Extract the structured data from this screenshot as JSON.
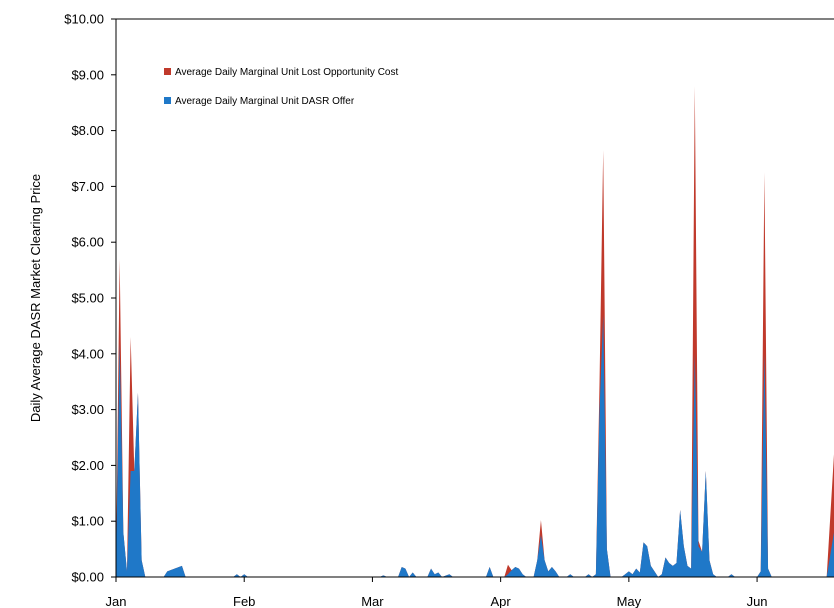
{
  "chart_data": {
    "type": "area",
    "title": "",
    "xlabel": "",
    "ylabel": "Daily Average DASR Market Clearing Price",
    "ylim": [
      0,
      10
    ],
    "xlim": [
      0,
      196
    ],
    "grid": false,
    "legend_position": "top-left",
    "y_ticks": [
      0,
      1,
      2,
      3,
      4,
      5,
      6,
      7,
      8,
      9,
      10
    ],
    "y_tick_labels": [
      "$0.00",
      "$1.00",
      "$2.00",
      "$3.00",
      "$4.00",
      "$5.00",
      "$6.00",
      "$7.00",
      "$8.00",
      "$9.00",
      "$10.00"
    ],
    "x_ticks": [
      0,
      35,
      70,
      105,
      140,
      175
    ],
    "x_tick_labels": [
      "Jan",
      "Feb",
      "Mar",
      "Apr",
      "May",
      "Jun"
    ],
    "series": [
      {
        "name": "Average Daily Marginal Unit Lost Opportunity Cost",
        "color": "#c0392b",
        "role": "total",
        "points": [
          [
            0,
            0.2
          ],
          [
            1,
            5.7
          ],
          [
            2,
            0.8
          ],
          [
            3,
            0.1
          ],
          [
            4,
            4.3
          ],
          [
            5,
            1.9
          ],
          [
            6,
            3.3
          ],
          [
            7,
            0.3
          ],
          [
            8,
            0
          ],
          [
            13,
            0
          ],
          [
            14,
            0.1
          ],
          [
            16,
            0.15
          ],
          [
            18,
            0.2
          ],
          [
            19,
            0
          ],
          [
            32,
            0
          ],
          [
            33,
            0.05
          ],
          [
            34,
            0
          ],
          [
            35,
            0.05
          ],
          [
            36,
            0
          ],
          [
            72,
            0
          ],
          [
            73,
            0.03
          ],
          [
            74,
            0
          ],
          [
            77,
            0
          ],
          [
            78,
            0.18
          ],
          [
            79,
            0.15
          ],
          [
            80,
            0
          ],
          [
            81,
            0.08
          ],
          [
            82,
            0
          ],
          [
            85,
            0
          ],
          [
            86,
            0.15
          ],
          [
            87,
            0.05
          ],
          [
            88,
            0.08
          ],
          [
            89,
            0
          ],
          [
            91,
            0.05
          ],
          [
            92,
            0
          ],
          [
            101,
            0
          ],
          [
            102,
            0.18
          ],
          [
            103,
            0
          ],
          [
            106,
            0
          ],
          [
            107,
            0.22
          ],
          [
            108,
            0.12
          ],
          [
            109,
            0.18
          ],
          [
            110,
            0.15
          ],
          [
            111,
            0.05
          ],
          [
            112,
            0
          ],
          [
            114,
            0
          ],
          [
            115,
            0.3
          ],
          [
            116,
            1.02
          ],
          [
            117,
            0.3
          ],
          [
            118,
            0.1
          ],
          [
            119,
            0.18
          ],
          [
            120,
            0.1
          ],
          [
            121,
            0
          ],
          [
            123,
            0
          ],
          [
            124,
            0.05
          ],
          [
            125,
            0
          ],
          [
            128,
            0
          ],
          [
            129,
            0.05
          ],
          [
            130,
            0
          ],
          [
            131,
            0.05
          ],
          [
            132,
            3.5
          ],
          [
            133,
            7.65
          ],
          [
            134,
            0.5
          ],
          [
            135,
            0
          ],
          [
            138,
            0
          ],
          [
            139,
            0.05
          ],
          [
            140,
            0.1
          ],
          [
            141,
            0.05
          ],
          [
            142,
            0.15
          ],
          [
            143,
            0.08
          ],
          [
            144,
            0.62
          ],
          [
            145,
            0.55
          ],
          [
            146,
            0.2
          ],
          [
            147,
            0.1
          ],
          [
            148,
            0
          ],
          [
            149,
            0.05
          ],
          [
            150,
            0.35
          ],
          [
            151,
            0.25
          ],
          [
            152,
            0.2
          ],
          [
            153,
            0.25
          ],
          [
            154,
            1.2
          ],
          [
            155,
            0.55
          ],
          [
            156,
            0.2
          ],
          [
            157,
            0.15
          ],
          [
            158,
            8.8
          ],
          [
            159,
            0.65
          ],
          [
            160,
            0.45
          ],
          [
            161,
            1.9
          ],
          [
            162,
            0.3
          ],
          [
            163,
            0.05
          ],
          [
            164,
            0
          ],
          [
            167,
            0
          ],
          [
            168,
            0.05
          ],
          [
            169,
            0
          ],
          [
            175,
            0
          ],
          [
            176,
            0.1
          ],
          [
            177,
            7.25
          ],
          [
            178,
            0.15
          ],
          [
            179,
            0
          ],
          [
            194,
            0
          ],
          [
            196,
            2.2
          ]
        ]
      },
      {
        "name": "Average Daily Marginal Unit DASR Offer",
        "color": "#1f78c8",
        "role": "base",
        "points": [
          [
            0,
            0.2
          ],
          [
            1,
            4.2
          ],
          [
            2,
            0.8
          ],
          [
            3,
            0.1
          ],
          [
            4,
            1.9
          ],
          [
            5,
            1.9
          ],
          [
            6,
            3.3
          ],
          [
            7,
            0.3
          ],
          [
            8,
            0
          ],
          [
            13,
            0
          ],
          [
            14,
            0.1
          ],
          [
            16,
            0.15
          ],
          [
            18,
            0.2
          ],
          [
            19,
            0
          ],
          [
            32,
            0
          ],
          [
            33,
            0.05
          ],
          [
            34,
            0
          ],
          [
            35,
            0.05
          ],
          [
            36,
            0
          ],
          [
            72,
            0
          ],
          [
            73,
            0.03
          ],
          [
            74,
            0
          ],
          [
            77,
            0
          ],
          [
            78,
            0.18
          ],
          [
            79,
            0.15
          ],
          [
            80,
            0
          ],
          [
            81,
            0.08
          ],
          [
            82,
            0
          ],
          [
            85,
            0
          ],
          [
            86,
            0.15
          ],
          [
            87,
            0.05
          ],
          [
            88,
            0.08
          ],
          [
            89,
            0
          ],
          [
            91,
            0.05
          ],
          [
            92,
            0
          ],
          [
            101,
            0
          ],
          [
            102,
            0.18
          ],
          [
            103,
            0
          ],
          [
            106,
            0
          ],
          [
            107,
            0.05
          ],
          [
            108,
            0.12
          ],
          [
            109,
            0.18
          ],
          [
            110,
            0.15
          ],
          [
            111,
            0.05
          ],
          [
            112,
            0
          ],
          [
            114,
            0
          ],
          [
            115,
            0.3
          ],
          [
            116,
            0.75
          ],
          [
            117,
            0.3
          ],
          [
            118,
            0.1
          ],
          [
            119,
            0.18
          ],
          [
            120,
            0.1
          ],
          [
            121,
            0
          ],
          [
            123,
            0
          ],
          [
            124,
            0.05
          ],
          [
            125,
            0
          ],
          [
            128,
            0
          ],
          [
            129,
            0.05
          ],
          [
            130,
            0
          ],
          [
            131,
            0.05
          ],
          [
            132,
            3.0
          ],
          [
            133,
            4.7
          ],
          [
            134,
            0.5
          ],
          [
            135,
            0
          ],
          [
            138,
            0
          ],
          [
            139,
            0.05
          ],
          [
            140,
            0.1
          ],
          [
            141,
            0.05
          ],
          [
            142,
            0.15
          ],
          [
            143,
            0.08
          ],
          [
            144,
            0.62
          ],
          [
            145,
            0.55
          ],
          [
            146,
            0.2
          ],
          [
            147,
            0.1
          ],
          [
            148,
            0
          ],
          [
            149,
            0.05
          ],
          [
            150,
            0.35
          ],
          [
            151,
            0.25
          ],
          [
            152,
            0.2
          ],
          [
            153,
            0.25
          ],
          [
            154,
            1.2
          ],
          [
            155,
            0.55
          ],
          [
            156,
            0.2
          ],
          [
            157,
            0.15
          ],
          [
            158,
            4.0
          ],
          [
            159,
            0.55
          ],
          [
            160,
            0.45
          ],
          [
            161,
            1.9
          ],
          [
            162,
            0.3
          ],
          [
            163,
            0.05
          ],
          [
            164,
            0
          ],
          [
            167,
            0
          ],
          [
            168,
            0.05
          ],
          [
            169,
            0
          ],
          [
            175,
            0
          ],
          [
            176,
            0.1
          ],
          [
            177,
            4.0
          ],
          [
            178,
            0.15
          ],
          [
            179,
            0
          ],
          [
            194,
            0
          ],
          [
            196,
            0.8
          ]
        ]
      }
    ]
  }
}
